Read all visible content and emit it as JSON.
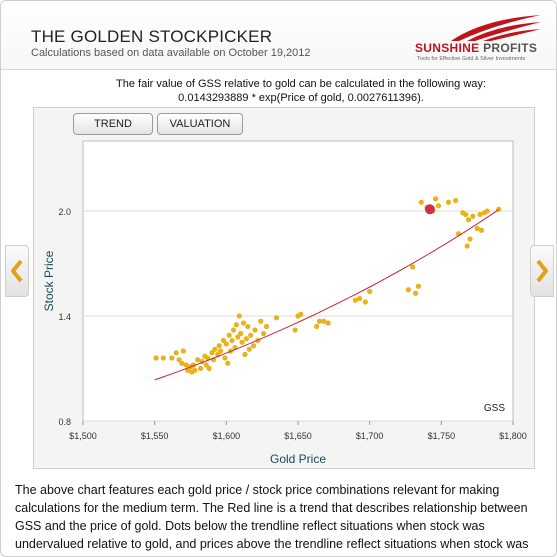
{
  "header": {
    "title": "THE GOLDEN STOCKPICKER",
    "subtitle": "Calculations based on data available on October 19,2012",
    "logo_brand_1": "SUNSHINE",
    "logo_brand_2": "PROFITS",
    "logo_tagline": "Tools for Effective Gold & Silver Investments"
  },
  "formula": {
    "line1": "The fair value of GSS relative to gold can be calculated in the following way:",
    "line2": "0.0143293889 * exp(Price of gold, 0.0027611396)."
  },
  "tabs": [
    {
      "label": "TREND"
    },
    {
      "label": "VALUATION"
    }
  ],
  "chart_data": {
    "type": "scatter",
    "xlabel": "Gold Price",
    "ylabel": "Stock Price",
    "xlim": [
      1500,
      1800
    ],
    "ylim": [
      0.8,
      2.4
    ],
    "x_ticks": [
      "$1,500",
      "$1,550",
      "$1,600",
      "$1,650",
      "$1,700",
      "$1,750",
      "$1,800"
    ],
    "y_ticks": [
      "0.8",
      "1.4",
      "2.0"
    ],
    "series_label": "GSS",
    "colors": {
      "dots": "#e8b21c",
      "trend": "#c8283a",
      "current": "#d0313e"
    },
    "trend": {
      "a": 0.0143293889,
      "b": 0.0027611396,
      "x_range": [
        1550,
        1790
      ]
    },
    "current_point": {
      "x": 1742,
      "y": 2.01
    },
    "points": [
      [
        1551,
        1.16
      ],
      [
        1556,
        1.16
      ],
      [
        1562,
        1.16
      ],
      [
        1565,
        1.19
      ],
      [
        1567,
        1.15
      ],
      [
        1569,
        1.13
      ],
      [
        1570,
        1.2
      ],
      [
        1572,
        1.12
      ],
      [
        1573,
        1.09
      ],
      [
        1575,
        1.11
      ],
      [
        1576,
        1.08
      ],
      [
        1577,
        1.12
      ],
      [
        1578,
        1.09
      ],
      [
        1580,
        1.15
      ],
      [
        1582,
        1.1
      ],
      [
        1583,
        1.14
      ],
      [
        1585,
        1.17
      ],
      [
        1586,
        1.12
      ],
      [
        1587,
        1.16
      ],
      [
        1588,
        1.1
      ],
      [
        1590,
        1.19
      ],
      [
        1591,
        1.15
      ],
      [
        1592,
        1.21
      ],
      [
        1594,
        1.18
      ],
      [
        1595,
        1.23
      ],
      [
        1596,
        1.2
      ],
      [
        1598,
        1.26
      ],
      [
        1599,
        1.16
      ],
      [
        1600,
        1.24
      ],
      [
        1601,
        1.13
      ],
      [
        1602,
        1.29
      ],
      [
        1603,
        1.2
      ],
      [
        1604,
        1.26
      ],
      [
        1605,
        1.32
      ],
      [
        1606,
        1.22
      ],
      [
        1607,
        1.35
      ],
      [
        1608,
        1.28
      ],
      [
        1609,
        1.4
      ],
      [
        1610,
        1.3
      ],
      [
        1611,
        1.25
      ],
      [
        1612,
        1.36
      ],
      [
        1613,
        1.18
      ],
      [
        1614,
        1.27
      ],
      [
        1615,
        1.34
      ],
      [
        1616,
        1.21
      ],
      [
        1617,
        1.29
      ],
      [
        1619,
        1.23
      ],
      [
        1620,
        1.32
      ],
      [
        1622,
        1.26
      ],
      [
        1624,
        1.37
      ],
      [
        1626,
        1.3
      ],
      [
        1628,
        1.34
      ],
      [
        1635,
        1.39
      ],
      [
        1648,
        1.32
      ],
      [
        1650,
        1.4
      ],
      [
        1652,
        1.41
      ],
      [
        1663,
        1.34
      ],
      [
        1665,
        1.37
      ],
      [
        1668,
        1.37
      ],
      [
        1671,
        1.36
      ],
      [
        1690,
        1.49
      ],
      [
        1693,
        1.5
      ],
      [
        1697,
        1.48
      ],
      [
        1700,
        1.54
      ],
      [
        1727,
        1.55
      ],
      [
        1730,
        1.68
      ],
      [
        1732,
        1.53
      ],
      [
        1734,
        1.57
      ],
      [
        1736,
        2.05
      ],
      [
        1740,
        2.02
      ],
      [
        1744,
        2.0
      ],
      [
        1746,
        2.07
      ],
      [
        1748,
        2.03
      ],
      [
        1755,
        2.05
      ],
      [
        1760,
        2.06
      ],
      [
        1762,
        1.87
      ],
      [
        1765,
        1.99
      ],
      [
        1767,
        1.98
      ],
      [
        1768,
        1.8
      ],
      [
        1769,
        1.95
      ],
      [
        1770,
        1.84
      ],
      [
        1772,
        1.97
      ],
      [
        1775,
        1.9
      ],
      [
        1777,
        1.98
      ],
      [
        1778,
        1.89
      ],
      [
        1780,
        1.99
      ],
      [
        1782,
        2.0
      ],
      [
        1790,
        2.01
      ]
    ]
  },
  "description": "The above chart features each gold price / stock price combinations relevant for making calculations for the medium term. The Red line is a trend that describes relationship between GSS and the price of gold. Dots below the trendline reflect situations when stock was undervalued relative to gold, and prices above the trendline reflect situations when stock was overvalued."
}
